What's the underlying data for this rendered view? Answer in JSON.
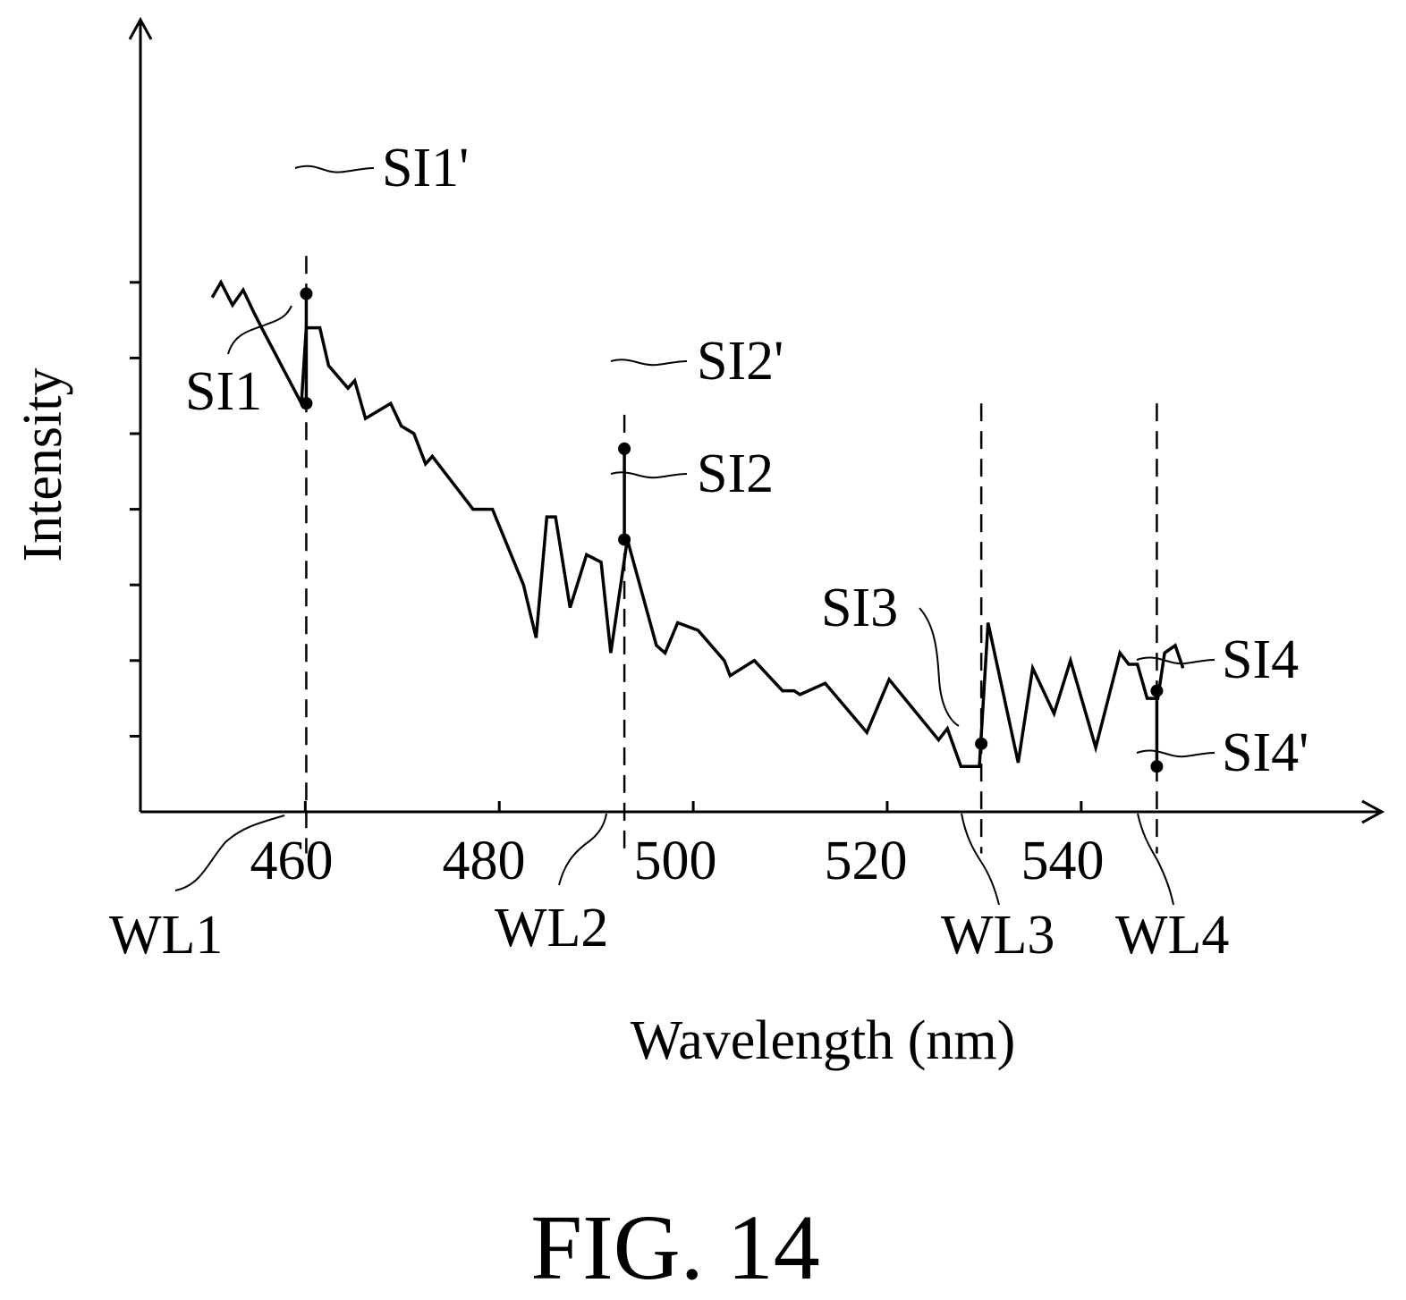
{
  "chart_data": {
    "type": "line",
    "title": "",
    "xlabel": "Wavelength (nm)",
    "ylabel": "Intensity",
    "xlim": [
      443,
      571
    ],
    "ylim": [
      0,
      10
    ],
    "x_ticks": [
      460,
      480,
      500,
      520,
      540
    ],
    "y_ticks": [
      1,
      2,
      3,
      4,
      5,
      6,
      7
    ],
    "series": [
      {
        "values": [
          [
            450.4,
            6.8
          ],
          [
            451.3,
            7.0
          ],
          [
            452.5,
            6.7
          ],
          [
            453.6,
            6.9
          ],
          [
            454.7,
            6.6
          ],
          [
            455.5,
            6.4
          ],
          [
            459.6,
            5.4
          ],
          [
            460.1,
            6.4
          ],
          [
            461.5,
            6.4
          ],
          [
            462.4,
            5.9
          ],
          [
            464.4,
            5.6
          ],
          [
            465.1,
            5.7
          ],
          [
            466.2,
            5.2
          ],
          [
            468.8,
            5.4
          ],
          [
            469.9,
            5.1
          ],
          [
            471.2,
            5.0
          ],
          [
            472.4,
            4.6
          ],
          [
            473.1,
            4.7
          ],
          [
            477.3,
            4.0
          ],
          [
            479.3,
            4.0
          ],
          [
            482.5,
            3.0
          ],
          [
            483.8,
            2.3
          ],
          [
            484.9,
            3.9
          ],
          [
            485.8,
            3.9
          ],
          [
            487.3,
            2.7
          ],
          [
            489.0,
            3.4
          ],
          [
            490.5,
            3.3
          ],
          [
            491.5,
            2.1
          ],
          [
            493.2,
            3.6
          ],
          [
            496.2,
            2.2
          ],
          [
            497.1,
            2.1
          ],
          [
            498.4,
            2.5
          ],
          [
            500.5,
            2.4
          ],
          [
            503.2,
            2.0
          ],
          [
            503.8,
            1.8
          ],
          [
            506.3,
            2.0
          ],
          [
            509.2,
            1.6
          ],
          [
            510.4,
            1.6
          ],
          [
            511.0,
            1.55
          ],
          [
            513.6,
            1.7
          ],
          [
            517.9,
            1.05
          ],
          [
            520.2,
            1.75
          ],
          [
            525.3,
            0.95
          ],
          [
            526.2,
            1.1
          ],
          [
            527.6,
            0.6
          ],
          [
            529.5,
            0.6
          ],
          [
            530.4,
            2.5
          ],
          [
            533.5,
            0.65
          ],
          [
            535.0,
            1.9
          ],
          [
            537.2,
            1.3
          ],
          [
            538.9,
            2.0
          ],
          [
            541.5,
            0.85
          ],
          [
            544.0,
            2.1
          ],
          [
            544.9,
            1.95
          ],
          [
            545.8,
            1.95
          ],
          [
            546.8,
            1.5
          ],
          [
            547.9,
            1.5
          ],
          [
            548.6,
            2.1
          ],
          [
            549.7,
            2.2
          ],
          [
            550.5,
            1.9
          ]
        ]
      }
    ],
    "reference_lines": [
      {
        "label": "WL1",
        "x": 460.1
      },
      {
        "label": "WL2",
        "x": 492.9
      },
      {
        "label": "WL3",
        "x": 529.7
      },
      {
        "label": "WL4",
        "x": 547.8
      }
    ],
    "markers": [
      {
        "label": "SI1",
        "x": 460.1,
        "y": 5.4
      },
      {
        "label": "SI1'",
        "x": 460.1,
        "y": 6.85
      },
      {
        "label": "SI2",
        "x": 492.9,
        "y": 3.6
      },
      {
        "label": "SI2'",
        "x": 492.9,
        "y": 4.8
      },
      {
        "label": "SI3",
        "x": 529.7,
        "y": 0.9
      },
      {
        "label": "SI4",
        "x": 547.8,
        "y": 1.6
      },
      {
        "label": "SI4'",
        "x": 547.8,
        "y": 0.6
      }
    ],
    "arrows": [
      {
        "from": "SI1",
        "to": "SI1'"
      },
      {
        "from": "SI2",
        "to": "SI2'"
      },
      {
        "from": "SI4",
        "to": "SI4'"
      }
    ],
    "grid": false,
    "legend": "none"
  },
  "figure": {
    "caption": "FIG. 14"
  },
  "colors": {
    "ink": "#000000",
    "background": "#ffffff"
  }
}
